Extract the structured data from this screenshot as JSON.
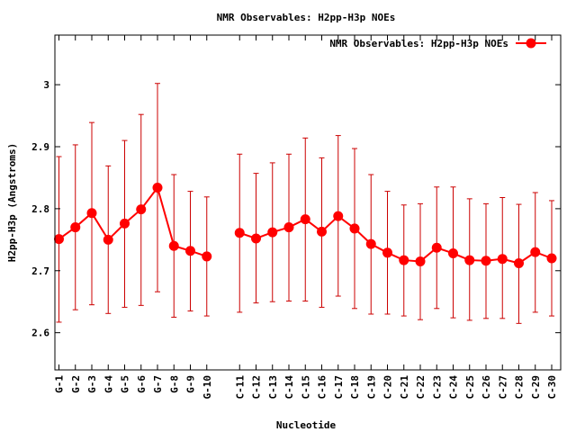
{
  "chart_data": {
    "type": "line",
    "title": "NMR Observables: H2pp-H3p NOEs",
    "xlabel": "Nucleotide",
    "ylabel": "H2pp-H3p (Angstroms)",
    "ylim": [
      2.54,
      3.08
    ],
    "yticks": [
      2.6,
      2.7,
      2.8,
      2.9,
      3.0
    ],
    "ytick_labels": [
      "2.6",
      "2.7",
      "2.8",
      "2.9",
      "3"
    ],
    "grid": false,
    "legend": "top-right",
    "series": [
      {
        "name": "NMR Observables: H2pp-H3p NOEs",
        "color": "#ff0000",
        "error_bar_color": "#cc0000",
        "segments": [
          {
            "categories": [
              "G-1",
              "G-2",
              "G-3",
              "G-4",
              "G-5",
              "G-6",
              "G-7",
              "G-8",
              "G-9",
              "G-10"
            ],
            "values": [
              2.751,
              2.77,
              2.793,
              2.75,
              2.776,
              2.799,
              2.834,
              2.74,
              2.732,
              2.723
            ],
            "err_low": [
              2.617,
              2.637,
              2.645,
              2.631,
              2.641,
              2.644,
              2.666,
              2.625,
              2.635,
              2.627
            ],
            "err_high": [
              2.884,
              2.903,
              2.939,
              2.869,
              2.91,
              2.952,
              3.002,
              2.855,
              2.828,
              2.819
            ]
          },
          {
            "categories": [
              "C-11",
              "C-12",
              "C-13",
              "C-14",
              "C-15",
              "C-16",
              "C-17",
              "C-18",
              "C-19",
              "C-20",
              "C-21",
              "C-22",
              "C-23",
              "C-24",
              "C-25",
              "C-26",
              "C-27",
              "C-28",
              "C-29",
              "C-30"
            ],
            "values": [
              2.761,
              2.752,
              2.762,
              2.77,
              2.783,
              2.763,
              2.788,
              2.768,
              2.743,
              2.729,
              2.717,
              2.715,
              2.737,
              2.728,
              2.717,
              2.716,
              2.719,
              2.712,
              2.73,
              2.72
            ],
            "err_low": [
              2.633,
              2.648,
              2.65,
              2.651,
              2.651,
              2.641,
              2.659,
              2.639,
              2.63,
              2.63,
              2.627,
              2.621,
              2.639,
              2.624,
              2.62,
              2.623,
              2.623,
              2.615,
              2.633,
              2.627
            ],
            "err_high": [
              2.888,
              2.857,
              2.874,
              2.888,
              2.914,
              2.882,
              2.918,
              2.897,
              2.855,
              2.828,
              2.806,
              2.808,
              2.835,
              2.835,
              2.816,
              2.808,
              2.818,
              2.807,
              2.826,
              2.813
            ]
          }
        ]
      }
    ]
  }
}
